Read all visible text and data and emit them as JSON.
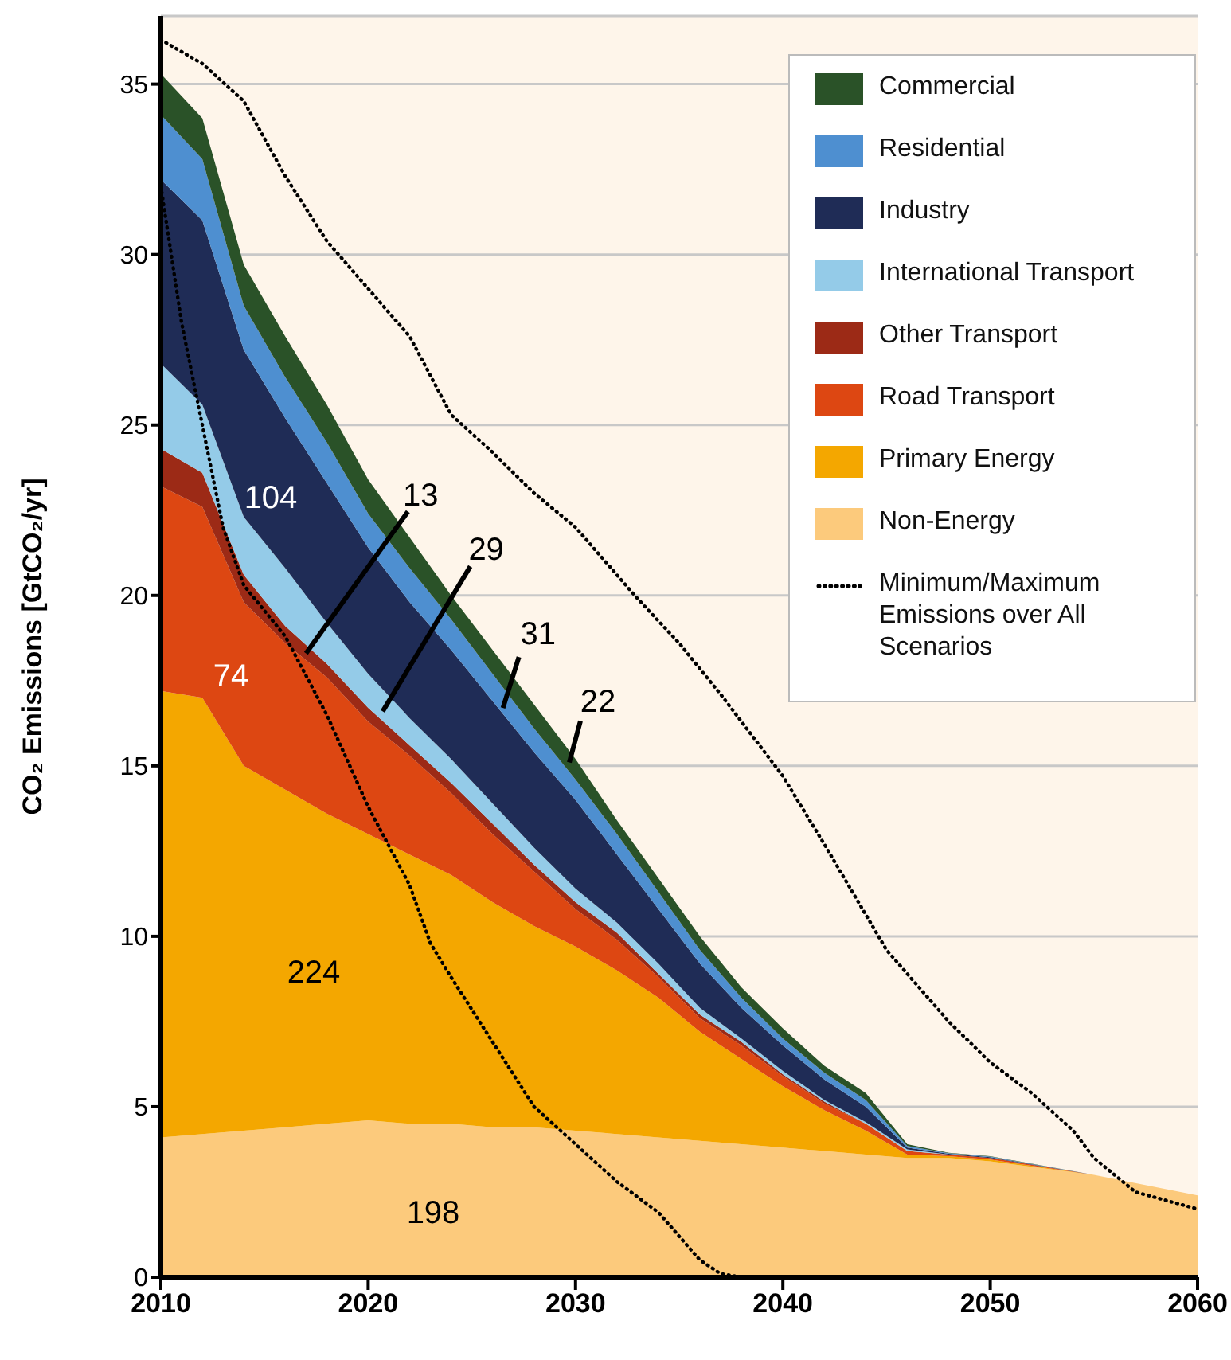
{
  "chart_data": {
    "type": "area",
    "stacked": true,
    "ylabel": "CO₂ Emissions [GtCO₂/yr]",
    "x": [
      2010,
      2012,
      2014,
      2016,
      2018,
      2020,
      2022,
      2024,
      2026,
      2028,
      2030,
      2032,
      2034,
      2036,
      2038,
      2040,
      2042,
      2044,
      2046,
      2048,
      2050,
      2055,
      2060
    ],
    "xlim": [
      2010,
      2060
    ],
    "xticks": [
      2010,
      2020,
      2030,
      2040,
      2050,
      2060
    ],
    "ylim": [
      0,
      37
    ],
    "yticks": [
      0,
      5,
      10,
      15,
      20,
      25,
      30,
      35
    ],
    "grid": "y",
    "legend": "top right",
    "series": [
      {
        "name": "Non-Energy",
        "color": "#fcca7c",
        "values": [
          4.1,
          4.2,
          4.3,
          4.4,
          4.5,
          4.6,
          4.5,
          4.5,
          4.4,
          4.4,
          4.3,
          4.2,
          4.1,
          4.0,
          3.9,
          3.8,
          3.7,
          3.6,
          3.5,
          3.5,
          3.4,
          3.0,
          2.4
        ]
      },
      {
        "name": "Primary Energy",
        "color": "#f4a700",
        "values": [
          13.1,
          12.8,
          10.7,
          9.9,
          9.1,
          8.4,
          7.9,
          7.3,
          6.6,
          5.9,
          5.4,
          4.8,
          4.1,
          3.2,
          2.5,
          1.8,
          1.2,
          0.7,
          0.1,
          0.05,
          0.05,
          0,
          0
        ]
      },
      {
        "name": "Road Transport",
        "color": "#dd4712",
        "values": [
          6.0,
          5.6,
          4.8,
          4.3,
          4.0,
          3.3,
          2.9,
          2.4,
          2.0,
          1.6,
          1.1,
          0.9,
          0.6,
          0.4,
          0.4,
          0.3,
          0.2,
          0.2,
          0.1,
          0.05,
          0.05,
          0,
          0
        ]
      },
      {
        "name": "Other Transport",
        "color": "#9c2a16",
        "values": [
          1.1,
          1.0,
          0.8,
          0.5,
          0.4,
          0.4,
          0.3,
          0.3,
          0.3,
          0.2,
          0.2,
          0.2,
          0.1,
          0.1,
          0.1,
          0.05,
          0.05,
          0,
          0,
          0,
          0,
          0,
          0
        ]
      },
      {
        "name": "International Transport",
        "color": "#94cbe8",
        "values": [
          2.5,
          2.0,
          1.7,
          1.7,
          1.2,
          1.0,
          0.8,
          0.7,
          0.6,
          0.5,
          0.4,
          0.3,
          0.3,
          0.2,
          0.1,
          0.1,
          0.05,
          0.05,
          0.05,
          0,
          0,
          0,
          0
        ]
      },
      {
        "name": "Industry",
        "color": "#1f2c56",
        "values": [
          5.4,
          5.4,
          4.9,
          4.4,
          4.1,
          3.7,
          3.4,
          3.2,
          3.0,
          2.8,
          2.6,
          2.0,
          1.6,
          1.3,
          0.9,
          0.75,
          0.6,
          0.45,
          0.05,
          0.02,
          0.02,
          0,
          0
        ]
      },
      {
        "name": "Residential",
        "color": "#4e8fd0",
        "values": [
          1.9,
          1.8,
          1.3,
          1.2,
          1.2,
          1.0,
          1.0,
          0.9,
          0.8,
          0.7,
          0.6,
          0.6,
          0.5,
          0.4,
          0.3,
          0.2,
          0.2,
          0.2,
          0.05,
          0.02,
          0.02,
          0,
          0
        ]
      },
      {
        "name": "Commercial",
        "color": "#2a5228",
        "values": [
          1.2,
          1.2,
          1.2,
          1.2,
          1.1,
          1.0,
          0.9,
          0.7,
          0.7,
          0.7,
          0.6,
          0.4,
          0.4,
          0.4,
          0.3,
          0.3,
          0.2,
          0.2,
          0.05,
          0.01,
          0.01,
          0,
          0
        ]
      },
      {
        "name": "Minimum/Maximum Emissions over All Scenarios",
        "type": "line",
        "line_style": "dotted",
        "marker": "none",
        "color": "#000000",
        "x": [
          2010,
          2012,
          2014,
          2016,
          2018,
          2020,
          2022,
          2024,
          2026,
          2028,
          2030,
          2033,
          2035,
          2037,
          2040,
          2042,
          2045,
          2048,
          2050,
          2052,
          2054,
          2055,
          2057,
          2060
        ],
        "values": [
          36.3,
          35.6,
          34.5,
          32.3,
          30.4,
          29.0,
          27.6,
          25.3,
          24.2,
          23.0,
          22.0,
          19.9,
          18.6,
          17.1,
          14.7,
          12.7,
          9.6,
          7.5,
          6.3,
          5.4,
          4.3,
          3.5,
          2.5,
          2.0
        ]
      },
      {
        "type": "line",
        "line_style": "dotted",
        "marker": "none",
        "color": "#000000",
        "x": [
          2010,
          2011,
          2012,
          2013,
          2014,
          2016,
          2018,
          2020,
          2022,
          2023,
          2024,
          2026,
          2028,
          2030,
          2032,
          2034,
          2035,
          2036,
          2037,
          2038,
          2060
        ],
        "values": [
          32.0,
          28.0,
          25.0,
          22.0,
          20.3,
          18.8,
          16.5,
          13.8,
          11.5,
          9.8,
          8.8,
          6.9,
          5.0,
          3.9,
          2.8,
          1.9,
          1.2,
          0.5,
          0.1,
          0,
          0
        ]
      }
    ],
    "annotations": [
      "104",
      "74",
      "224",
      "198",
      {
        "text": "13",
        "x": 2017.0,
        "y": 18.3
      },
      {
        "text": "29",
        "x": 2020.7,
        "y": 16.6
      },
      {
        "text": "31",
        "x": 2026.5,
        "y": 16.7
      },
      {
        "text": "22",
        "x": 2029.7,
        "y": 15.1
      }
    ]
  }
}
